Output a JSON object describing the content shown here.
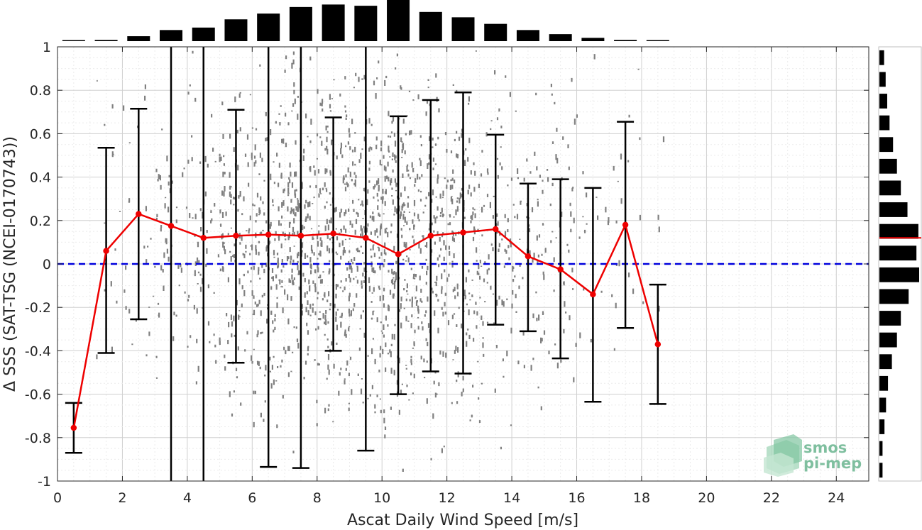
{
  "chart_data": {
    "type": "scatter",
    "xlabel": "Ascat Daily Wind Speed [m/s]",
    "ylabel": "Δ SSS (SAT-TSG (NCEI-0170743))",
    "xlim": [
      0,
      25
    ],
    "ylim": [
      -1,
      1
    ],
    "x_ticks": [
      "0",
      "2",
      "4",
      "6",
      "8",
      "10",
      "12",
      "14",
      "16",
      "18",
      "20",
      "22",
      "24"
    ],
    "y_ticks": [
      "-1",
      "-0.8",
      "-0.6",
      "-0.4",
      "-0.2",
      "0",
      "0.2",
      "0.4",
      "0.6",
      "0.8",
      "1"
    ],
    "grid": true,
    "zero_line": {
      "y": 0,
      "color": "#0000dd",
      "style": "dashed"
    },
    "scatter_color": "#808080",
    "mean_color": "#ee0000",
    "errorbar_color": "#000000",
    "series": [
      {
        "kind": "binned-mean",
        "x": [
          0.5,
          1.5,
          2.5,
          3.5,
          4.5,
          5.5,
          6.5,
          7.5,
          8.5,
          9.5,
          10.5,
          11.5,
          12.5,
          13.5,
          14.5,
          15.5,
          16.5,
          17.5,
          18.5
        ],
        "mean": [
          -0.755,
          0.06,
          0.23,
          0.175,
          0.12,
          0.13,
          0.135,
          0.13,
          0.14,
          0.12,
          0.045,
          0.13,
          0.145,
          0.16,
          0.035,
          -0.025,
          -0.14,
          0.18,
          -0.37
        ],
        "lower": [
          -0.87,
          -0.41,
          -0.255,
          -1.05,
          -1.05,
          -0.455,
          -0.935,
          -0.94,
          -0.4,
          -0.86,
          -0.6,
          -0.495,
          -0.505,
          -0.28,
          -0.31,
          -0.435,
          -0.635,
          -0.295,
          -0.645
        ],
        "upper": [
          -0.64,
          0.535,
          0.715,
          1.05,
          1.05,
          0.71,
          1.05,
          1.05,
          0.675,
          1.05,
          0.68,
          0.755,
          0.79,
          0.595,
          0.37,
          0.39,
          0.35,
          0.655,
          -0.095
        ]
      }
    ],
    "x_histogram": {
      "bin_centers": [
        0.5,
        1.5,
        2.5,
        3.5,
        4.5,
        5.5,
        6.5,
        7.5,
        8.5,
        9.5,
        10.5,
        11.5,
        12.5,
        13.5,
        14.5,
        15.5,
        16.5,
        17.5,
        18.5
      ],
      "relative_counts": [
        0.02,
        0.03,
        0.12,
        0.27,
        0.33,
        0.53,
        0.67,
        0.83,
        0.89,
        0.86,
        1.0,
        0.71,
        0.58,
        0.42,
        0.27,
        0.17,
        0.08,
        0.03,
        0.01
      ]
    },
    "y_histogram": {
      "bin_centers": [
        0.95,
        0.85,
        0.75,
        0.65,
        0.55,
        0.45,
        0.35,
        0.25,
        0.15,
        0.05,
        -0.05,
        -0.15,
        -0.25,
        -0.35,
        -0.45,
        -0.55,
        -0.65,
        -0.75,
        -0.85,
        -0.95
      ],
      "relative_counts": [
        0.12,
        0.16,
        0.2,
        0.26,
        0.35,
        0.45,
        0.55,
        0.72,
        1.0,
        0.95,
        1.02,
        0.75,
        0.55,
        0.45,
        0.32,
        0.22,
        0.17,
        0.13,
        0.08,
        0.08
      ],
      "mean_marker": 0.12
    }
  },
  "logo": {
    "line1": "smos",
    "line2": "pi-mep"
  }
}
